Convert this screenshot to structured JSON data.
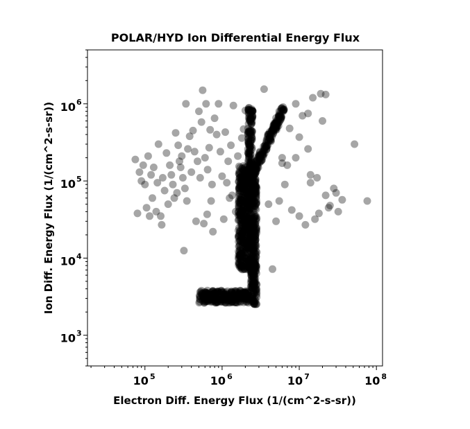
{
  "chart_data": {
    "type": "scatter",
    "title": "POLAR/HYD  Ion Differential Energy Flux",
    "xlabel": "Electron Diff. Energy Flux (1/(cm^2-s-sr))",
    "ylabel": "Ion Diff. Energy Flux (1/(cm^2-s-sr))",
    "xscale": "log",
    "yscale": "log",
    "xlim": [
      18000,
      120000000
    ],
    "ylim": [
      400,
      5000000
    ],
    "xticks": [
      {
        "base": "10",
        "exp": "5",
        "value": 100000
      },
      {
        "base": "10",
        "exp": "6",
        "value": 1000000
      },
      {
        "base": "10",
        "exp": "7",
        "value": 10000000
      },
      {
        "base": "10",
        "exp": "8",
        "value": 100000000
      }
    ],
    "yticks": [
      {
        "base": "10",
        "exp": "3",
        "value": 1000
      },
      {
        "base": "10",
        "exp": "4",
        "value": 10000
      },
      {
        "base": "10",
        "exp": "5",
        "value": 100000
      },
      {
        "base": "10",
        "exp": "6",
        "value": 1000000
      }
    ],
    "grid": false,
    "marker_color": "#000000",
    "marker_alpha": 0.35,
    "series": [
      {
        "points": [
          [
            75000,
            190000
          ],
          [
            80000,
            38000
          ],
          [
            85000,
            130000
          ],
          [
            90000,
            100000
          ],
          [
            95000,
            160000
          ],
          [
            100000,
            90000
          ],
          [
            105000,
            45000
          ],
          [
            110000,
            210000
          ],
          [
            115000,
            35000
          ],
          [
            120000,
            120000
          ],
          [
            125000,
            60000
          ],
          [
            130000,
            150000
          ],
          [
            140000,
            40000
          ],
          [
            145000,
            95000
          ],
          [
            150000,
            300000
          ],
          [
            160000,
            35000
          ],
          [
            165000,
            27000
          ],
          [
            170000,
            110000
          ],
          [
            180000,
            75000
          ],
          [
            190000,
            230000
          ],
          [
            200000,
            50000
          ],
          [
            210000,
            160000
          ],
          [
            220000,
            120000
          ],
          [
            230000,
            90000
          ],
          [
            240000,
            60000
          ],
          [
            250000,
            420000
          ],
          [
            260000,
            70000
          ],
          [
            270000,
            290000
          ],
          [
            280000,
            180000
          ],
          [
            290000,
            150000
          ],
          [
            300000,
            210000
          ],
          [
            310000,
            110000
          ],
          [
            320000,
            12500
          ],
          [
            330000,
            80000
          ],
          [
            340000,
            1000000
          ],
          [
            350000,
            55000
          ],
          [
            360000,
            260000
          ],
          [
            380000,
            380000
          ],
          [
            400000,
            130000
          ],
          [
            420000,
            450000
          ],
          [
            440000,
            240000
          ],
          [
            460000,
            30000
          ],
          [
            480000,
            180000
          ],
          [
            500000,
            800000
          ],
          [
            520000,
            110000
          ],
          [
            540000,
            580000
          ],
          [
            560000,
            1500000
          ],
          [
            580000,
            28000
          ],
          [
            600000,
            200000
          ],
          [
            620000,
            1000000
          ],
          [
            640000,
            37000
          ],
          [
            650000,
            140000
          ],
          [
            680000,
            270000
          ],
          [
            700000,
            460000
          ],
          [
            720000,
            55000
          ],
          [
            740000,
            90000
          ],
          [
            760000,
            22000
          ],
          [
            800000,
            650000
          ],
          [
            850000,
            400000
          ],
          [
            900000,
            1000000
          ],
          [
            950000,
            240000
          ],
          [
            1000000,
            115000
          ],
          [
            1050000,
            32000
          ],
          [
            1100000,
            430000
          ],
          [
            1150000,
            95000
          ],
          [
            1200000,
            180000
          ],
          [
            1250000,
            60000
          ],
          [
            1300000,
            290000
          ],
          [
            1350000,
            65000
          ],
          [
            1400000,
            950000
          ],
          [
            1500000,
            40000
          ],
          [
            1600000,
            210000
          ],
          [
            1700000,
            22000
          ],
          [
            1800000,
            360000
          ],
          [
            1900000,
            470000
          ],
          [
            2000000,
            820000
          ],
          [
            3500000,
            1550000
          ],
          [
            4000000,
            50000
          ],
          [
            4500000,
            7200
          ],
          [
            5000000,
            30000
          ],
          [
            5500000,
            55000
          ],
          [
            6000000,
            200000
          ],
          [
            6500000,
            90000
          ],
          [
            7000000,
            160000
          ],
          [
            7500000,
            480000
          ],
          [
            8000000,
            42000
          ],
          [
            9000000,
            1000000
          ],
          [
            10000000,
            35000
          ],
          [
            11000000,
            700000
          ],
          [
            12000000,
            27000
          ],
          [
            13000000,
            260000
          ],
          [
            14000000,
            95000
          ],
          [
            15000000,
            1200000
          ],
          [
            16000000,
            32000
          ],
          [
            17000000,
            110000
          ],
          [
            18000000,
            38000
          ],
          [
            19000000,
            1350000
          ],
          [
            20000000,
            600000
          ],
          [
            22000000,
            65000
          ],
          [
            25000000,
            48000
          ],
          [
            28000000,
            80000
          ],
          [
            30000000,
            70000
          ],
          [
            32000000,
            40000
          ],
          [
            36000000,
            57000
          ],
          [
            52000000,
            300000
          ],
          [
            76000000,
            55000
          ],
          [
            22000000,
            1320000
          ],
          [
            13000000,
            750000
          ],
          [
            10000000,
            370000
          ],
          [
            9000000,
            200000
          ],
          [
            14000000,
            120000
          ],
          [
            6000000,
            170000
          ],
          [
            24000000,
            45000
          ]
        ]
      }
    ]
  }
}
